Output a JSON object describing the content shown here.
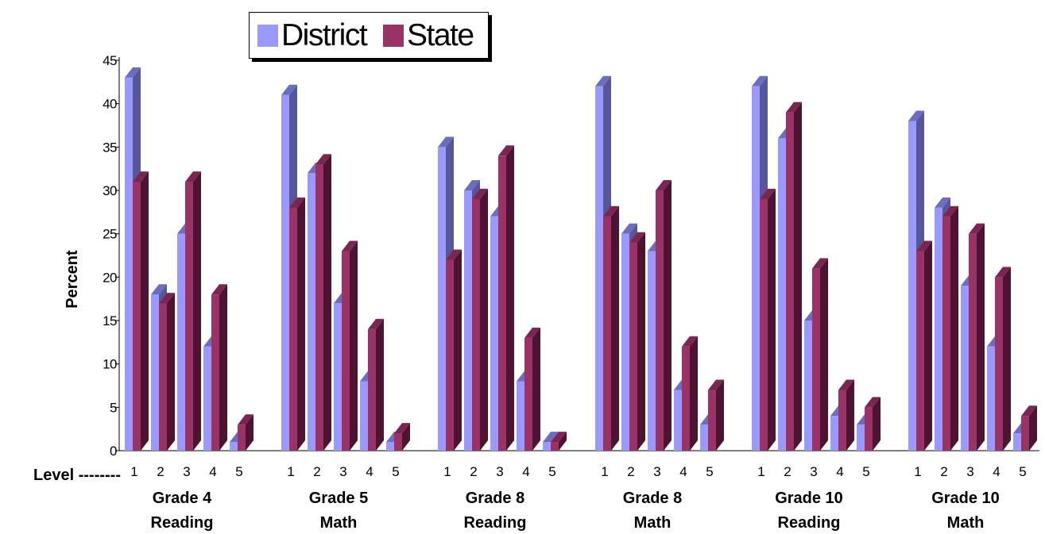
{
  "chart_data": {
    "type": "bar",
    "three_d": true,
    "ylabel": "Percent",
    "ylim": [
      0,
      45
    ],
    "yticks": [
      0,
      5,
      10,
      15,
      20,
      25,
      30,
      35,
      40,
      45
    ],
    "level_label": "Level --------",
    "levels": [
      "1",
      "2",
      "3",
      "4",
      "5"
    ],
    "legend_position": "top-center",
    "groups": [
      {
        "line1": "Grade 4",
        "line2": "Reading",
        "District": [
          43,
          18,
          25,
          12,
          1
        ],
        "State": [
          31,
          17,
          31,
          18,
          3
        ]
      },
      {
        "line1": "Grade 5",
        "line2": "Math",
        "District": [
          41,
          32,
          17,
          8,
          1
        ],
        "State": [
          28,
          33,
          23,
          14,
          2
        ]
      },
      {
        "line1": "Grade 8",
        "line2": "Reading",
        "District": [
          35,
          30,
          27,
          8,
          1
        ],
        "State": [
          22,
          29,
          34,
          13,
          1
        ]
      },
      {
        "line1": "Grade 8",
        "line2": "Math",
        "District": [
          42,
          25,
          23,
          7,
          3
        ],
        "State": [
          27,
          24,
          30,
          12,
          7
        ]
      },
      {
        "line1": "Grade 10",
        "line2": "Reading",
        "District": [
          42,
          36,
          15,
          4,
          3
        ],
        "State": [
          29,
          39,
          21,
          7,
          5
        ]
      },
      {
        "line1": "Grade 10",
        "line2": "Math",
        "District": [
          38,
          28,
          19,
          12,
          2
        ],
        "State": [
          23,
          27,
          25,
          20,
          4
        ]
      }
    ],
    "series": [
      {
        "name": "District",
        "color": "#9999ff",
        "side_color": "#56569b",
        "top_color": "#6c6cc0"
      },
      {
        "name": "State",
        "color": "#993366",
        "side_color": "#4e1333",
        "top_color": "#7a2650"
      }
    ]
  }
}
